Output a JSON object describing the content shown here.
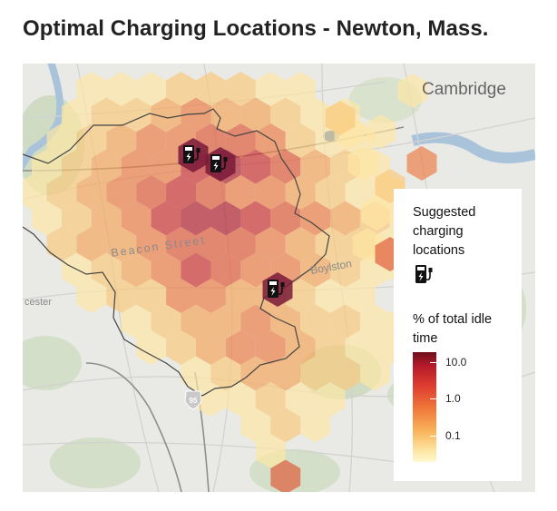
{
  "title": "Optimal Charging Locations - Newton, Mass.",
  "map": {
    "labels": {
      "cambridge": "Cambridge",
      "street": "Beacon Street",
      "boylston": "Boylston",
      "worcester": "cester",
      "route_95": "95"
    },
    "charging_station_count": 3
  },
  "legend": {
    "suggested_label": "Suggested charging locations",
    "idle_label": "% of total idle time",
    "scale": "log",
    "ticks": [
      "10.0",
      "1.0",
      "0.1"
    ],
    "colors": [
      "#fff7c9",
      "#fde6a4",
      "#f9c87a",
      "#f5a55a",
      "#ec7d46",
      "#e05a38",
      "#c9302f",
      "#b01d2d"
    ],
    "station_color": "#7a1a3a"
  }
}
